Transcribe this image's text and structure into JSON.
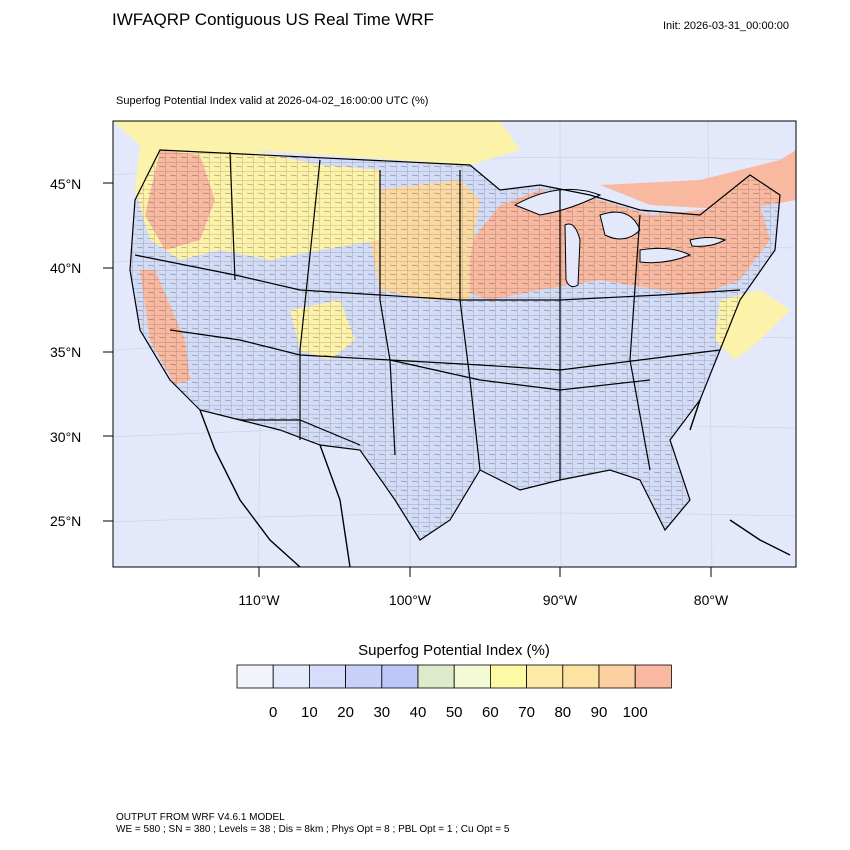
{
  "header": {
    "title": "IWFAQRP Contiguous US Real Time WRF",
    "init": "Init: 2026-03-31_00:00:00",
    "valid": "Superfog Potential Index valid at 2026-04-02_16:00:00 UTC   (%)"
  },
  "map": {
    "lat_labels": [
      "45°N",
      "40°N",
      "35°N",
      "30°N",
      "25°N"
    ],
    "lon_labels": [
      "110°W",
      "100°W",
      "90°W",
      "80°W"
    ],
    "colors": {
      "background": "#e3e9fb",
      "high_index": "#f8b9a0",
      "mid_high": "#fbd9a2",
      "mid": "#fdf2a9",
      "low_mid": "#d3dcf7",
      "border": "#000000"
    }
  },
  "legend": {
    "title": "Superfog Potential Index  (%)",
    "labels": [
      "0",
      "10",
      "20",
      "30",
      "40",
      "50",
      "60",
      "70",
      "80",
      "90",
      "100"
    ],
    "colors": [
      "#f1f4fb",
      "#e5ebfc",
      "#d5ddfa",
      "#c8d2f9",
      "#bcc6f7",
      "#dfeacb",
      "#f4fbd4",
      "#fdfaa6",
      "#fdeaa8",
      "#fde2a2",
      "#fcd0a0",
      "#f9b9a0"
    ]
  },
  "footer": {
    "line1": "OUTPUT FROM WRF V4.6.1 MODEL",
    "line2": "WE = 580 ; SN = 380 ; Levels = 38 ; Dis = 8km ; Phys Opt = 8 ; PBL Opt = 1 ; Cu Opt = 5"
  }
}
